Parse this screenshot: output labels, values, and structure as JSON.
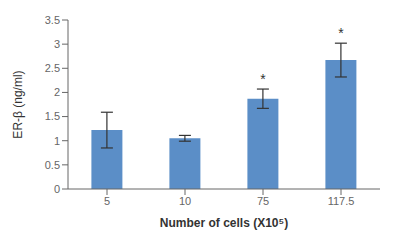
{
  "chart_data": {
    "type": "bar",
    "categories": [
      "5",
      "10",
      "75",
      "117.5"
    ],
    "values": [
      1.22,
      1.05,
      1.87,
      2.67
    ],
    "errors": [
      0.37,
      0.06,
      0.2,
      0.35
    ],
    "color": "#5b8ec7",
    "xlabel": "Number of cells (X10⁵)",
    "ylabel": "ER-β (ng/ml)",
    "ylim": [
      0,
      3.5
    ],
    "yticks": [
      0,
      0.5,
      1,
      1.5,
      2,
      2.5,
      3,
      3.5
    ],
    "grid": false,
    "annotations": [
      {
        "x": "75",
        "text": "*"
      },
      {
        "x": "117.5",
        "text": "*"
      }
    ]
  }
}
